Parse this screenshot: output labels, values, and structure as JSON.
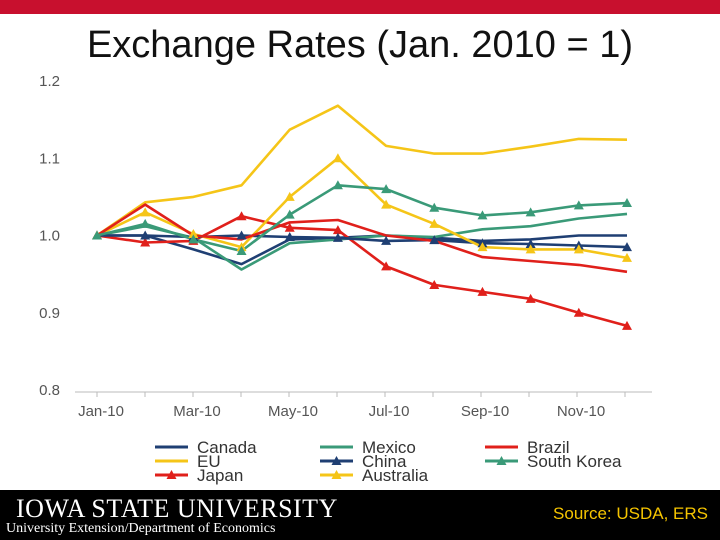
{
  "header": {
    "title": "Exchange Rates (Jan. 2010 = 1)"
  },
  "footer": {
    "university": "IOWA STATE UNIVERSITY",
    "department": "University Extension/Department of Economics",
    "source": "Source: USDA, ERS"
  },
  "colors": {
    "topbar": "#c8102e",
    "footer_bg": "#000000",
    "source_text": "#f5c400"
  },
  "chart_data": {
    "type": "line",
    "title": "Exchange Rates (Jan. 2010 = 1)",
    "xlabel": "",
    "ylabel": "",
    "ylim": [
      0.8,
      1.2
    ],
    "yticks": [
      0.8,
      0.9,
      1.0,
      1.1,
      1.2
    ],
    "ytick_labels": [
      "0.8",
      "0.9",
      "1.0",
      "1.1",
      "1.2"
    ],
    "categories": [
      "Jan-10",
      "Feb-10",
      "Mar-10",
      "Apr-10",
      "May-10",
      "Jun-10",
      "Jul-10",
      "Aug-10",
      "Sep-10",
      "Oct-10",
      "Nov-10",
      "Dec-10"
    ],
    "xtick_labels": [
      "Jan-10",
      "Mar-10",
      "May-10",
      "Jul-10",
      "Sep-10",
      "Nov-10"
    ],
    "grid": false,
    "legend_position": "bottom",
    "series": [
      {
        "name": "Canada",
        "color": "#1f3f73",
        "marker": "none",
        "values": [
          1.0,
          1.0,
          0.982,
          0.963,
          0.995,
          0.997,
          1.0,
          0.997,
          0.993,
          0.995,
          1.0,
          1.0
        ]
      },
      {
        "name": "EU",
        "color": "#f5c518",
        "marker": "none",
        "values": [
          1.0,
          1.043,
          1.05,
          1.065,
          1.137,
          1.168,
          1.116,
          1.106,
          1.106,
          1.115,
          1.125,
          1.124
        ]
      },
      {
        "name": "Japan",
        "color": "#e0201b",
        "marker": "triangle",
        "values": [
          1.0,
          0.991,
          0.993,
          1.025,
          1.01,
          1.007,
          0.96,
          0.936,
          0.927,
          0.918,
          0.9,
          0.883
        ]
      },
      {
        "name": "Mexico",
        "color": "#3a9a78",
        "marker": "none",
        "values": [
          1.0,
          1.012,
          0.997,
          0.956,
          0.99,
          0.995,
          1.0,
          0.998,
          1.008,
          1.012,
          1.022,
          1.028
        ]
      },
      {
        "name": "China",
        "color": "#1f3f73",
        "marker": "triangle",
        "values": [
          1.0,
          1.0,
          0.998,
          1.0,
          0.998,
          0.997,
          0.993,
          0.994,
          0.99,
          0.989,
          0.987,
          0.985
        ]
      },
      {
        "name": "Australia",
        "color": "#f5c518",
        "marker": "triangle",
        "values": [
          1.0,
          1.03,
          1.002,
          0.985,
          1.05,
          1.1,
          1.04,
          1.015,
          0.985,
          0.982,
          0.982,
          0.971
        ]
      },
      {
        "name": "Brazil",
        "color": "#e0201b",
        "marker": "none",
        "values": [
          1.0,
          1.04,
          1.0,
          0.995,
          1.017,
          1.02,
          1.0,
          0.993,
          0.972,
          0.967,
          0.962,
          0.953
        ]
      },
      {
        "name": "South Korea",
        "color": "#3a9a78",
        "marker": "triangle",
        "values": [
          1.0,
          1.015,
          0.995,
          0.98,
          1.027,
          1.065,
          1.06,
          1.036,
          1.026,
          1.03,
          1.039,
          1.042
        ]
      }
    ]
  }
}
